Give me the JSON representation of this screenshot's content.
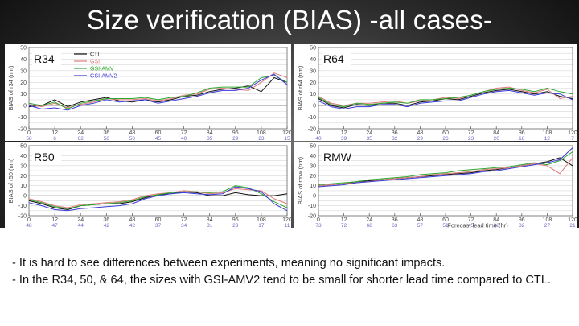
{
  "slide": {
    "title": "Size verification (BIAS) -all cases-",
    "notes": [
      "- It is hard to see differences between experiments, meaning no significant impacts.",
      "- In the R34, 50, & 64, the sizes with GSI-AMV2 tend to be small for shorter lead time compared to CTL."
    ]
  },
  "chart_data": [
    {
      "type": "line",
      "panel_label": "R34",
      "ylabel": "BIAS of r34 (nm)",
      "xlabel": "",
      "x": [
        0,
        6,
        12,
        18,
        24,
        30,
        36,
        42,
        48,
        54,
        60,
        66,
        72,
        78,
        84,
        90,
        96,
        102,
        108,
        114,
        120
      ],
      "xticks": [
        0,
        12,
        24,
        36,
        48,
        60,
        72,
        84,
        96,
        108,
        120
      ],
      "case_counts": [
        "58",
        "6",
        "62",
        "56",
        "50",
        "45",
        "40",
        "35",
        "29",
        "23",
        "15"
      ],
      "ylim": [
        -20,
        50
      ],
      "yticks": [
        -20,
        -15,
        -10,
        -5,
        0,
        5,
        10,
        15,
        20,
        25,
        30,
        35,
        40,
        45,
        50
      ],
      "legend": "top-left",
      "series": [
        {
          "name": "CTL",
          "color": "#111111",
          "values": [
            -1,
            0,
            5,
            -1,
            3,
            5,
            7,
            4,
            3,
            5,
            3,
            5,
            8,
            9,
            12,
            14,
            15,
            17,
            12,
            24,
            20
          ]
        },
        {
          "name": "GSI",
          "color": "#e07a7a",
          "values": [
            1,
            -1,
            2,
            -2,
            1,
            3,
            6,
            5,
            5,
            6,
            4,
            6,
            9,
            10,
            14,
            15,
            14,
            13,
            20,
            28,
            24
          ]
        },
        {
          "name": "GSI-AMV",
          "color": "#2ea82e",
          "values": [
            2,
            0,
            3,
            -3,
            2,
            4,
            6,
            6,
            6,
            7,
            5,
            7,
            8,
            11,
            15,
            16,
            16,
            16,
            24,
            26,
            20
          ]
        },
        {
          "name": "GSI-AMV2",
          "color": "#3a3ad8",
          "values": [
            0,
            -3,
            -2,
            -4,
            0,
            2,
            5,
            3,
            4,
            5,
            2,
            4,
            6,
            8,
            11,
            13,
            13,
            15,
            22,
            27,
            18
          ]
        }
      ]
    },
    {
      "type": "line",
      "panel_label": "R64",
      "ylabel": "BIAS of r64 (nm)",
      "xlabel": "",
      "x": [
        0,
        6,
        12,
        18,
        24,
        30,
        36,
        42,
        48,
        54,
        60,
        66,
        72,
        78,
        84,
        90,
        96,
        102,
        108,
        114,
        120
      ],
      "xticks": [
        0,
        12,
        24,
        36,
        48,
        60,
        72,
        84,
        96,
        108,
        120
      ],
      "case_counts": [
        "40",
        "39",
        "35",
        "32",
        "29",
        "26",
        "23",
        "20",
        "18",
        "12",
        "7"
      ],
      "ylim": [
        -20,
        50
      ],
      "yticks": [
        -20,
        -15,
        -10,
        -5,
        0,
        5,
        10,
        15,
        20,
        25,
        30,
        35,
        40,
        45,
        50
      ],
      "series": [
        {
          "name": "CTL",
          "color": "#111111",
          "values": [
            6,
            0,
            -2,
            1,
            0,
            2,
            2,
            0,
            3,
            4,
            6,
            5,
            8,
            11,
            13,
            14,
            12,
            10,
            12,
            8,
            6
          ]
        },
        {
          "name": "GSI",
          "color": "#e07a7a",
          "values": [
            8,
            2,
            0,
            2,
            2,
            3,
            4,
            2,
            4,
            5,
            7,
            6,
            9,
            12,
            15,
            16,
            13,
            11,
            14,
            6,
            8
          ]
        },
        {
          "name": "GSI-AMV",
          "color": "#2ea82e",
          "values": [
            7,
            1,
            -1,
            2,
            1,
            2,
            3,
            2,
            5,
            5,
            6,
            7,
            9,
            12,
            14,
            15,
            14,
            12,
            15,
            12,
            10
          ]
        },
        {
          "name": "GSI-AMV2",
          "color": "#3a3ad8",
          "values": [
            4,
            -1,
            -3,
            -1,
            -1,
            1,
            1,
            -1,
            2,
            3,
            4,
            4,
            7,
            10,
            12,
            13,
            11,
            9,
            11,
            10,
            5
          ]
        }
      ]
    },
    {
      "type": "line",
      "panel_label": "R50",
      "ylabel": "BIAS of r50 (nm)",
      "xlabel": "",
      "x": [
        0,
        6,
        12,
        18,
        24,
        30,
        36,
        42,
        48,
        54,
        60,
        66,
        72,
        78,
        84,
        90,
        96,
        102,
        108,
        114,
        120
      ],
      "xticks": [
        0,
        12,
        24,
        36,
        48,
        60,
        72,
        84,
        96,
        108,
        120
      ],
      "case_counts": [
        "48",
        "47",
        "44",
        "42",
        "42",
        "37",
        "34",
        "31",
        "23",
        "17",
        "11"
      ],
      "ylim": [
        -20,
        50
      ],
      "yticks": [
        -20,
        -15,
        -10,
        -5,
        0,
        5,
        10,
        15,
        20,
        25,
        30,
        35,
        40,
        45,
        50
      ],
      "series": [
        {
          "name": "CTL",
          "color": "#111111",
          "values": [
            -5,
            -8,
            -12,
            -14,
            -10,
            -9,
            -8,
            -8,
            -6,
            -2,
            1,
            2,
            4,
            3,
            0,
            0,
            3,
            1,
            0,
            0,
            2
          ]
        },
        {
          "name": "GSI",
          "color": "#e07a7a",
          "values": [
            -3,
            -6,
            -10,
            -12,
            -9,
            -8,
            -7,
            -6,
            -4,
            0,
            2,
            3,
            5,
            4,
            2,
            3,
            7,
            6,
            5,
            -3,
            -8
          ]
        },
        {
          "name": "GSI-AMV",
          "color": "#2ea82e",
          "values": [
            -4,
            -7,
            -11,
            -13,
            -10,
            -9,
            -8,
            -7,
            -5,
            -1,
            1,
            3,
            4,
            4,
            3,
            4,
            10,
            8,
            2,
            -6,
            -12
          ]
        },
        {
          "name": "GSI-AMV2",
          "color": "#3a3ad8",
          "values": [
            -7,
            -10,
            -14,
            -15,
            -13,
            -12,
            -11,
            -10,
            -8,
            -3,
            0,
            2,
            3,
            2,
            1,
            2,
            9,
            7,
            4,
            -8,
            -15
          ]
        }
      ]
    },
    {
      "type": "line",
      "panel_label": "RMW",
      "ylabel": "BIAS of rmw (nm)",
      "xlabel": "Forecast lead time (hr)",
      "case_label": "#CASE",
      "x": [
        0,
        6,
        12,
        18,
        24,
        30,
        36,
        42,
        48,
        54,
        60,
        66,
        72,
        78,
        84,
        90,
        96,
        102,
        108,
        114,
        120
      ],
      "xticks": [
        0,
        12,
        24,
        36,
        48,
        60,
        72,
        84,
        96,
        108,
        120
      ],
      "case_counts": [
        "73",
        "72",
        "68",
        "63",
        "57",
        "51",
        "45",
        "38",
        "32",
        "27",
        "21"
      ],
      "ylim": [
        -20,
        50
      ],
      "yticks": [
        -20,
        -15,
        -10,
        -5,
        0,
        5,
        10,
        15,
        20,
        25,
        30,
        35,
        40,
        45,
        50
      ],
      "series": [
        {
          "name": "CTL",
          "color": "#111111",
          "values": [
            10,
            11,
            12,
            14,
            15,
            16,
            17,
            18,
            19,
            20,
            21,
            22,
            23,
            25,
            26,
            28,
            30,
            32,
            34,
            38,
            30
          ]
        },
        {
          "name": "GSI",
          "color": "#e07a7a",
          "values": [
            10,
            11,
            12,
            13,
            14,
            16,
            17,
            18,
            19,
            21,
            22,
            23,
            24,
            26,
            27,
            28,
            30,
            32,
            30,
            22,
            38
          ]
        },
        {
          "name": "GSI-AMV",
          "color": "#2ea82e",
          "values": [
            11,
            12,
            13,
            14,
            16,
            17,
            18,
            19,
            21,
            22,
            23,
            25,
            26,
            27,
            28,
            29,
            31,
            33,
            31,
            35,
            44
          ]
        },
        {
          "name": "GSI-AMV2",
          "color": "#3a3ad8",
          "values": [
            9,
            10,
            11,
            13,
            14,
            15,
            16,
            17,
            18,
            19,
            20,
            21,
            22,
            24,
            25,
            27,
            29,
            31,
            33,
            36,
            48
          ]
        }
      ]
    }
  ]
}
